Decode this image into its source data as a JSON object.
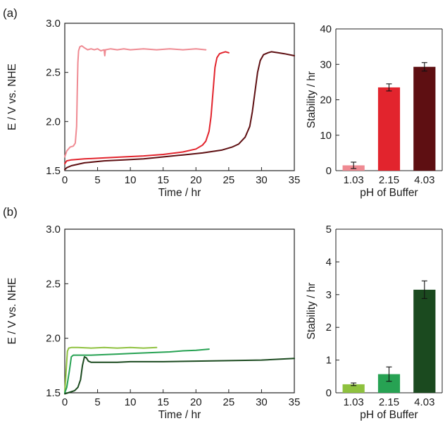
{
  "panel_labels": [
    "(a)",
    "(b)"
  ],
  "colors": {
    "a_light": "#ef8a92",
    "a_mid": "#e2242d",
    "a_dark": "#5e0f12",
    "b_light": "#8ec13e",
    "b_mid": "#27a253",
    "b_dark": "#1b4a1f"
  },
  "chart_data": [
    {
      "panel": "(a)",
      "type": "line",
      "xlabel": "Time / hr",
      "ylabel": "E / V vs. NHE",
      "xlim": [
        0,
        35
      ],
      "ylim": [
        1.5,
        3.0
      ],
      "xticks": [
        "0",
        "5",
        "10",
        "15",
        "20",
        "25",
        "30",
        "35"
      ],
      "yticks": [
        "1.5",
        "2.0",
        "2.5",
        "3.0"
      ],
      "series": [
        {
          "color": "#ef8a92",
          "x": [
            0,
            0.3,
            0.8,
            1.3,
            1.6,
            1.8,
            1.9,
            2.0,
            2.1,
            2.3,
            2.6,
            3.0,
            3.5,
            4,
            4.5,
            5,
            5.5,
            6,
            6.1,
            6.2,
            7,
            8,
            9,
            10,
            12,
            14,
            16,
            18,
            20,
            21.5
          ],
          "y": [
            1.64,
            1.7,
            1.74,
            1.75,
            1.78,
            1.95,
            2.3,
            2.6,
            2.72,
            2.76,
            2.77,
            2.75,
            2.73,
            2.74,
            2.73,
            2.74,
            2.72,
            2.73,
            2.67,
            2.73,
            2.74,
            2.73,
            2.74,
            2.73,
            2.74,
            2.73,
            2.74,
            2.73,
            2.74,
            2.73
          ]
        },
        {
          "color": "#e2242d",
          "x": [
            0,
            0.3,
            1,
            3,
            6,
            9,
            12,
            15,
            18,
            20,
            21,
            21.5,
            22,
            22.3,
            22.6,
            22.9,
            23.2,
            23.6,
            24,
            24.5,
            25
          ],
          "y": [
            1.57,
            1.6,
            1.61,
            1.62,
            1.63,
            1.64,
            1.65,
            1.665,
            1.69,
            1.72,
            1.76,
            1.8,
            1.9,
            2.05,
            2.3,
            2.55,
            2.65,
            2.69,
            2.7,
            2.71,
            2.7
          ]
        },
        {
          "color": "#5e0f12",
          "x": [
            0,
            0.3,
            1,
            3,
            6,
            9,
            12,
            15,
            18,
            21,
            24,
            25.5,
            26.5,
            27.5,
            28.2,
            28.6,
            29.0,
            29.4,
            29.8,
            30.3,
            31,
            31.5,
            32.5,
            33.5,
            35
          ],
          "y": [
            1.51,
            1.53,
            1.55,
            1.58,
            1.6,
            1.61,
            1.62,
            1.64,
            1.66,
            1.68,
            1.71,
            1.74,
            1.77,
            1.84,
            1.95,
            2.1,
            2.3,
            2.5,
            2.62,
            2.68,
            2.7,
            2.71,
            2.7,
            2.69,
            2.67
          ]
        }
      ]
    },
    {
      "panel": "(a)",
      "type": "bar",
      "xlabel": "pH of Buffer",
      "ylabel": "Stability / hr",
      "ylim": [
        0,
        40
      ],
      "yticks": [
        "0",
        "10",
        "20",
        "30",
        "40"
      ],
      "categories": [
        "1.03",
        "2.15",
        "4.03"
      ],
      "values": [
        1.5,
        23.5,
        29.3
      ],
      "errors": [
        0.9,
        1.0,
        1.2
      ],
      "colors": [
        "#ef8a92",
        "#e2242d",
        "#5e0f12"
      ]
    },
    {
      "panel": "(b)",
      "type": "line",
      "xlabel": "Time / hr",
      "ylabel": "E / V vs. NHE",
      "xlim": [
        0,
        35
      ],
      "ylim": [
        1.5,
        3.0
      ],
      "xticks": [
        "0",
        "5",
        "10",
        "15",
        "20",
        "25",
        "30",
        "35"
      ],
      "yticks": [
        "1.5",
        "2.0",
        "2.5",
        "3.0"
      ],
      "series": [
        {
          "color": "#8ec13e",
          "x": [
            0,
            0.2,
            0.4,
            0.6,
            1,
            2,
            4,
            6,
            8,
            10,
            12,
            14
          ],
          "y": [
            1.5,
            1.7,
            1.88,
            1.91,
            1.915,
            1.915,
            1.91,
            1.915,
            1.91,
            1.915,
            1.91,
            1.915
          ]
        },
        {
          "color": "#27a253",
          "x": [
            0,
            0.3,
            0.7,
            1.0,
            1.3,
            2,
            4,
            6,
            8,
            10,
            12,
            14,
            16,
            18,
            20,
            22
          ],
          "y": [
            1.5,
            1.55,
            1.7,
            1.83,
            1.845,
            1.845,
            1.845,
            1.85,
            1.855,
            1.86,
            1.865,
            1.87,
            1.875,
            1.885,
            1.89,
            1.9
          ]
        },
        {
          "color": "#1b4a1f",
          "x": [
            0,
            0.5,
            1.0,
            1.5,
            2.0,
            2.4,
            2.7,
            3.0,
            3.3,
            3.6,
            4,
            6,
            8,
            10,
            15,
            20,
            25,
            30,
            35
          ],
          "y": [
            1.49,
            1.5,
            1.51,
            1.52,
            1.55,
            1.62,
            1.75,
            1.83,
            1.82,
            1.79,
            1.78,
            1.78,
            1.78,
            1.785,
            1.785,
            1.79,
            1.795,
            1.8,
            1.815
          ]
        }
      ]
    },
    {
      "panel": "(b)",
      "type": "bar",
      "xlabel": "pH of Buffer",
      "ylabel": "Stability / hr",
      "ylim": [
        0,
        5
      ],
      "yticks": [
        "0",
        "1",
        "2",
        "3",
        "4",
        "5"
      ],
      "categories": [
        "1.03",
        "2.15",
        "4.03"
      ],
      "values": [
        0.26,
        0.57,
        3.15
      ],
      "errors": [
        0.04,
        0.22,
        0.27
      ],
      "colors": [
        "#8ec13e",
        "#27a253",
        "#1b4a1f"
      ]
    }
  ]
}
